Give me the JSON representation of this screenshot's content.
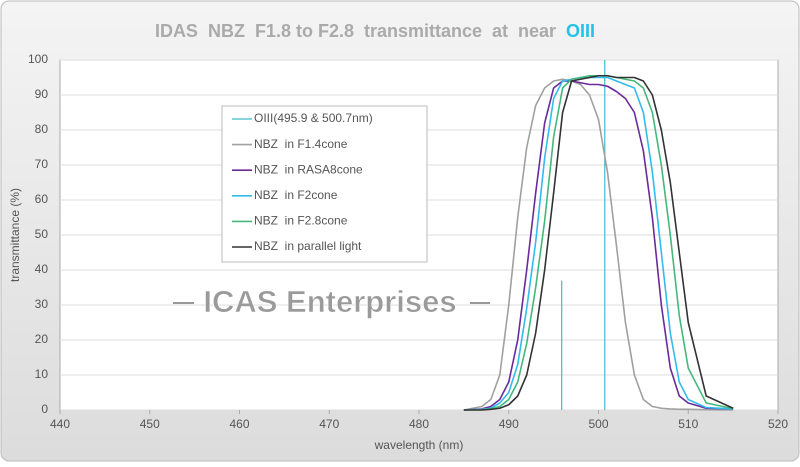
{
  "chart_data": {
    "type": "line",
    "title": "IDAS  NBZ  F1.8 to F2.8  transmittance  at  near",
    "title_highlight": "OIII",
    "title_highlight_color": "#22c3e6",
    "watermark": "ICAS Enterprises",
    "x_label": "wavelength (nm)",
    "y_label": "transmittance (%)",
    "xlim": [
      440,
      520
    ],
    "xticks": [
      440,
      450,
      460,
      470,
      480,
      490,
      500,
      510,
      520
    ],
    "ylim": [
      0,
      100
    ],
    "yticks": [
      0,
      10,
      20,
      30,
      40,
      50,
      60,
      70,
      80,
      90,
      100
    ],
    "grid": true,
    "legend": "upper-left",
    "x": [
      485,
      487,
      488,
      489,
      490,
      491,
      492,
      493,
      494,
      495,
      496,
      497,
      498,
      499,
      500,
      501,
      502,
      503,
      504,
      505,
      506,
      507,
      508,
      509,
      510,
      512,
      515
    ],
    "series": [
      {
        "name": "OIII(495.9 & 500.7nm)",
        "color": "#3fbcc8",
        "style": "stem",
        "x": [
          495.9,
          500.7
        ],
        "values": [
          37,
          100
        ]
      },
      {
        "name": "NBZ  in F1.4cone",
        "color": "#a0a0a0",
        "values": [
          0,
          1,
          3,
          10,
          30,
          55,
          75,
          87,
          92,
          94,
          94.5,
          94,
          93,
          90,
          83,
          68,
          47,
          25,
          10,
          3,
          1,
          0.5,
          0.3,
          0.2,
          0.2,
          0.1,
          0
        ]
      },
      {
        "name": "NBZ  in RASA8cone",
        "color": "#6a2a9a",
        "values": [
          0,
          0.3,
          1,
          3,
          8,
          20,
          40,
          62,
          82,
          92,
          94,
          94,
          93.5,
          93,
          93,
          92.5,
          91,
          89,
          85,
          74,
          55,
          30,
          12,
          4,
          2,
          0.5,
          0.3
        ]
      },
      {
        "name": "NBZ  in F2cone",
        "color": "#33bbee",
        "values": [
          0,
          0.2,
          0.5,
          2,
          5,
          13,
          29,
          48,
          72,
          89,
          94,
          94.5,
          95,
          95,
          95,
          95,
          94,
          93,
          92,
          85,
          68,
          45,
          22,
          8,
          3,
          0.7,
          0.3
        ]
      },
      {
        "name": "NBZ  in F2.8cone",
        "color": "#44b87a",
        "values": [
          0,
          0.1,
          0.3,
          1,
          3,
          8,
          19,
          35,
          54,
          78,
          92,
          94.5,
          95,
          95.5,
          95.5,
          95.5,
          95,
          94.5,
          94,
          92,
          85,
          70,
          50,
          27,
          12,
          2,
          0.4
        ]
      },
      {
        "name": "NBZ  in parallel light",
        "color": "#333333",
        "values": [
          0,
          0,
          0.2,
          0.5,
          1.5,
          4,
          10,
          22,
          40,
          62,
          85,
          94,
          94.5,
          95,
          95.5,
          95.5,
          95,
          95,
          95,
          94,
          90,
          80,
          65,
          45,
          25,
          4,
          0.5
        ]
      }
    ]
  }
}
